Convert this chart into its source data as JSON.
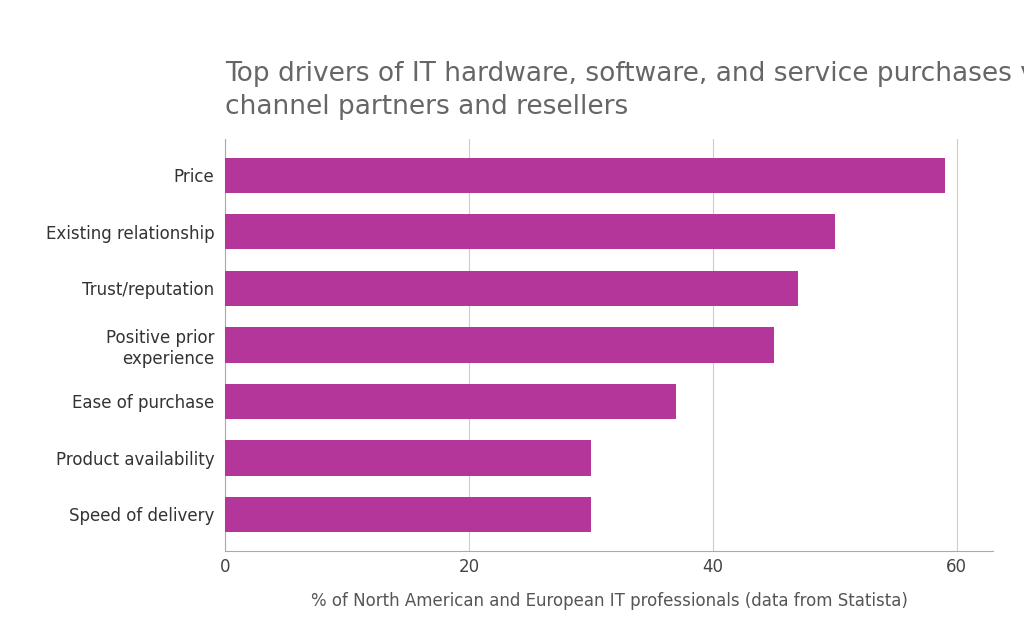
{
  "title": "Top drivers of IT hardware, software, and service purchases via\nchannel partners and resellers",
  "categories": [
    "Speed of delivery",
    "Product availability",
    "Ease of purchase",
    "Positive prior\nexperience",
    "Trust/reputation",
    "Existing relationship",
    "Price"
  ],
  "values": [
    30,
    30,
    37,
    45,
    47,
    50,
    59
  ],
  "bar_color": "#b5369a",
  "xlabel": "% of North American and European IT professionals (data from Statista)",
  "xlim": [
    0,
    63
  ],
  "xticks": [
    0,
    20,
    40,
    60
  ],
  "background_color": "#ffffff",
  "title_fontsize": 19,
  "label_fontsize": 12,
  "xlabel_fontsize": 12,
  "tick_fontsize": 12,
  "title_color": "#666666",
  "label_color": "#333333",
  "grid_color": "#cccccc",
  "spine_color": "#aaaaaa"
}
